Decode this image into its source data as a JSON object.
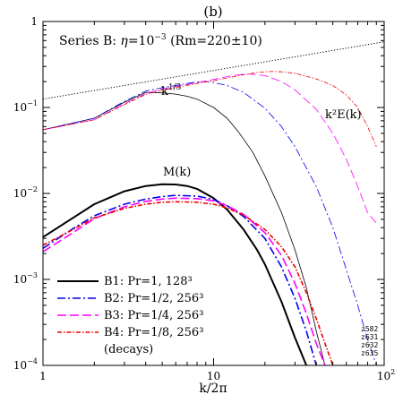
{
  "chart_data": {
    "type": "line",
    "panel_label": "(b)",
    "annotation": {
      "prefix": "Series B: ",
      "eta_symbol": "η",
      "eta_eq": "=10",
      "eta_exp": "−3",
      "rm_text": " (Rm=220±10)"
    },
    "xlabel": "k/2π",
    "xscale": "log",
    "yscale": "log",
    "xlim": [
      1,
      100
    ],
    "ylim": [
      0.0001,
      1
    ],
    "x_ticks": [
      {
        "value": 1,
        "base": "1",
        "exp": ""
      },
      {
        "value": 10,
        "base": "10",
        "exp": ""
      },
      {
        "value": 100,
        "base": "10",
        "exp": "2"
      }
    ],
    "y_ticks": [
      {
        "value": 0.0001,
        "base": "10",
        "exp": "−4"
      },
      {
        "value": 0.001,
        "base": "10",
        "exp": "−3"
      },
      {
        "value": 0.01,
        "base": "10",
        "exp": "−2"
      },
      {
        "value": 0.1,
        "base": "10",
        "exp": "−1"
      },
      {
        "value": 1,
        "base": "1",
        "exp": ""
      }
    ],
    "labels": {
      "k13_base": "k",
      "k13_exp": "1/3",
      "k2E": "k²E(k)",
      "Mk": "M(k)"
    },
    "legend": {
      "entries": [
        {
          "text": "B1: Pr=1,    128³",
          "color": "#000000",
          "dash": "",
          "width": 2
        },
        {
          "text": "B2: Pr=1/2, 256³",
          "color": "#0000ee",
          "dash": "9,3,2,3",
          "width": 1.6
        },
        {
          "text": "B3: Pr=1/4, 256³",
          "color": "#ff00ff",
          "dash": "10,4",
          "width": 1.6
        },
        {
          "text": "B4: Pr=1/8, 256³",
          "color": "#ee0000",
          "dash": "5,2,1.5,2",
          "width": 1.6
        }
      ],
      "note": "(decays)"
    },
    "run_ids": [
      "z582",
      "z631",
      "z632",
      "z635"
    ],
    "reference_line": {
      "label": "k^1/3",
      "x": [
        1,
        100
      ],
      "y": [
        0.125,
        0.58
      ],
      "color": "#000000",
      "dash": "1.2,2"
    },
    "series": [
      {
        "group": "kinetic",
        "color": "#000000",
        "dash": "",
        "width": 0.8,
        "x": [
          1,
          2,
          3,
          4,
          5,
          6,
          7,
          8,
          10,
          12,
          14,
          17,
          20,
          25,
          30,
          35,
          40,
          45
        ],
        "y": [
          0.055,
          0.075,
          0.115,
          0.15,
          0.148,
          0.143,
          0.135,
          0.125,
          0.1,
          0.075,
          0.052,
          0.03,
          0.016,
          0.006,
          0.0022,
          0.0008,
          0.00025,
          0.0001
        ]
      },
      {
        "group": "kinetic",
        "color": "#0000ee",
        "dash": "9,3,2,3",
        "width": 0.8,
        "x": [
          1,
          2,
          3,
          4,
          5,
          6,
          7,
          8,
          9,
          10,
          12,
          15,
          20,
          25,
          30,
          40,
          50,
          60,
          70,
          80,
          90
        ],
        "y": [
          0.055,
          0.075,
          0.118,
          0.155,
          0.17,
          0.18,
          0.19,
          0.198,
          0.2,
          0.195,
          0.18,
          0.15,
          0.098,
          0.06,
          0.035,
          0.012,
          0.004,
          0.0013,
          0.0005,
          0.0002,
          0.0001
        ]
      },
      {
        "group": "kinetic",
        "color": "#ff00ff",
        "dash": "10,4",
        "width": 0.8,
        "x": [
          1,
          2,
          3,
          4,
          5,
          6,
          8,
          10,
          12,
          14,
          16,
          18,
          20,
          25,
          30,
          40,
          50,
          60,
          70,
          80,
          90
        ],
        "y": [
          0.055,
          0.072,
          0.11,
          0.145,
          0.165,
          0.175,
          0.195,
          0.212,
          0.228,
          0.24,
          0.245,
          0.24,
          0.235,
          0.2,
          0.16,
          0.095,
          0.05,
          0.025,
          0.012,
          0.006,
          0.0045
        ]
      },
      {
        "group": "kinetic",
        "color": "#ee0000",
        "dash": "5,2,1.5,2",
        "width": 0.8,
        "x": [
          1,
          2,
          3,
          4,
          5,
          6,
          8,
          10,
          12,
          15,
          18,
          20,
          22,
          25,
          30,
          40,
          50,
          60,
          70,
          80,
          90
        ],
        "y": [
          0.055,
          0.072,
          0.108,
          0.142,
          0.16,
          0.17,
          0.19,
          0.205,
          0.22,
          0.24,
          0.255,
          0.26,
          0.262,
          0.26,
          0.25,
          0.215,
          0.18,
          0.14,
          0.1,
          0.06,
          0.035
        ]
      },
      {
        "group": "magnetic",
        "color": "#000000",
        "dash": "",
        "width": 2,
        "x": [
          1,
          1.5,
          2,
          3,
          4,
          5,
          6,
          7,
          8,
          10,
          12,
          15,
          18,
          20,
          25,
          30,
          35
        ],
        "y": [
          0.0031,
          0.0052,
          0.0075,
          0.0106,
          0.0122,
          0.0128,
          0.0127,
          0.0122,
          0.0113,
          0.0088,
          0.0065,
          0.0038,
          0.0022,
          0.0015,
          0.00055,
          0.00021,
          0.0001
        ]
      },
      {
        "group": "magnetic",
        "color": "#0000ee",
        "dash": "9,3,2,3",
        "width": 1.6,
        "x": [
          1,
          1.5,
          2,
          3,
          4,
          5,
          6,
          8,
          10,
          12,
          15,
          20,
          25,
          30,
          35,
          40
        ],
        "y": [
          0.0023,
          0.0039,
          0.0055,
          0.0075,
          0.0086,
          0.0092,
          0.0095,
          0.0093,
          0.0085,
          0.0072,
          0.0054,
          0.003,
          0.0014,
          0.0006,
          0.00025,
          0.0001
        ]
      },
      {
        "group": "magnetic",
        "color": "#ff00ff",
        "dash": "10,4",
        "width": 1.6,
        "x": [
          1,
          1.5,
          2,
          3,
          4,
          5,
          6,
          8,
          10,
          12,
          15,
          20,
          25,
          30,
          35,
          40,
          45
        ],
        "y": [
          0.0021,
          0.0035,
          0.0051,
          0.007,
          0.0081,
          0.0086,
          0.0088,
          0.0087,
          0.0082,
          0.0072,
          0.0057,
          0.0035,
          0.0019,
          0.0009,
          0.0004,
          0.00018,
          0.0001
        ]
      },
      {
        "group": "magnetic",
        "color": "#ee0000",
        "dash": "5,2,1.5,2",
        "width": 1.6,
        "x": [
          1,
          1.5,
          2,
          3,
          4,
          5,
          6,
          8,
          10,
          12,
          15,
          20,
          25,
          30,
          35,
          40,
          45,
          50
        ],
        "y": [
          0.0025,
          0.0038,
          0.0052,
          0.0067,
          0.0075,
          0.0079,
          0.008,
          0.0079,
          0.0075,
          0.0068,
          0.0056,
          0.0038,
          0.0024,
          0.0014,
          0.0007,
          0.00035,
          0.00018,
          0.0001
        ]
      }
    ]
  }
}
